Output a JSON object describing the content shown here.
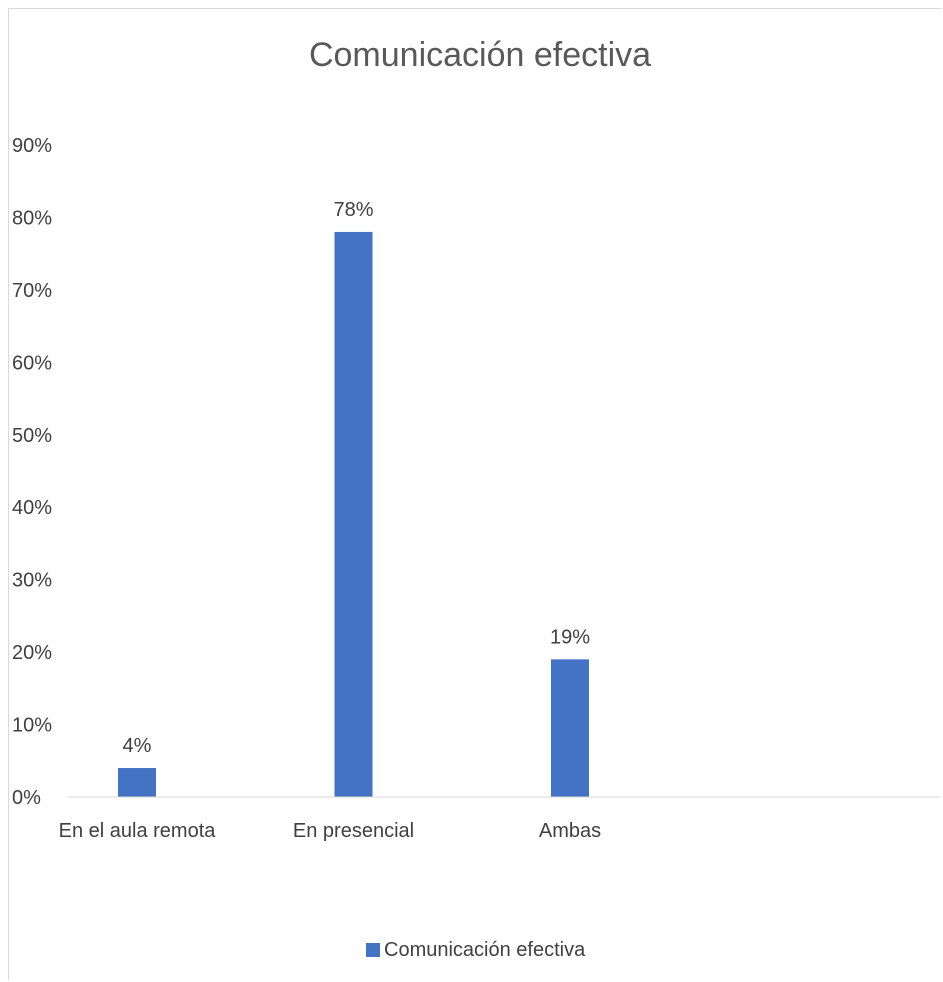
{
  "chart_data": {
    "type": "bar",
    "title": "Comunicación efectiva",
    "categories": [
      "En el aula remota",
      "En presencial",
      "Ambas"
    ],
    "series": [
      {
        "name": "Comunicación efectiva",
        "values": [
          4,
          78,
          19
        ]
      }
    ],
    "data_labels": [
      "4%",
      "78%",
      "19%"
    ],
    "y_ticks": [
      "0%",
      "10%",
      "20%",
      "30%",
      "40%",
      "50%",
      "60%",
      "70%",
      "80%",
      "90%"
    ],
    "ylim": [
      0,
      90
    ],
    "grid": false,
    "legend_position": "bottom",
    "bar_color": "#4472c4"
  }
}
